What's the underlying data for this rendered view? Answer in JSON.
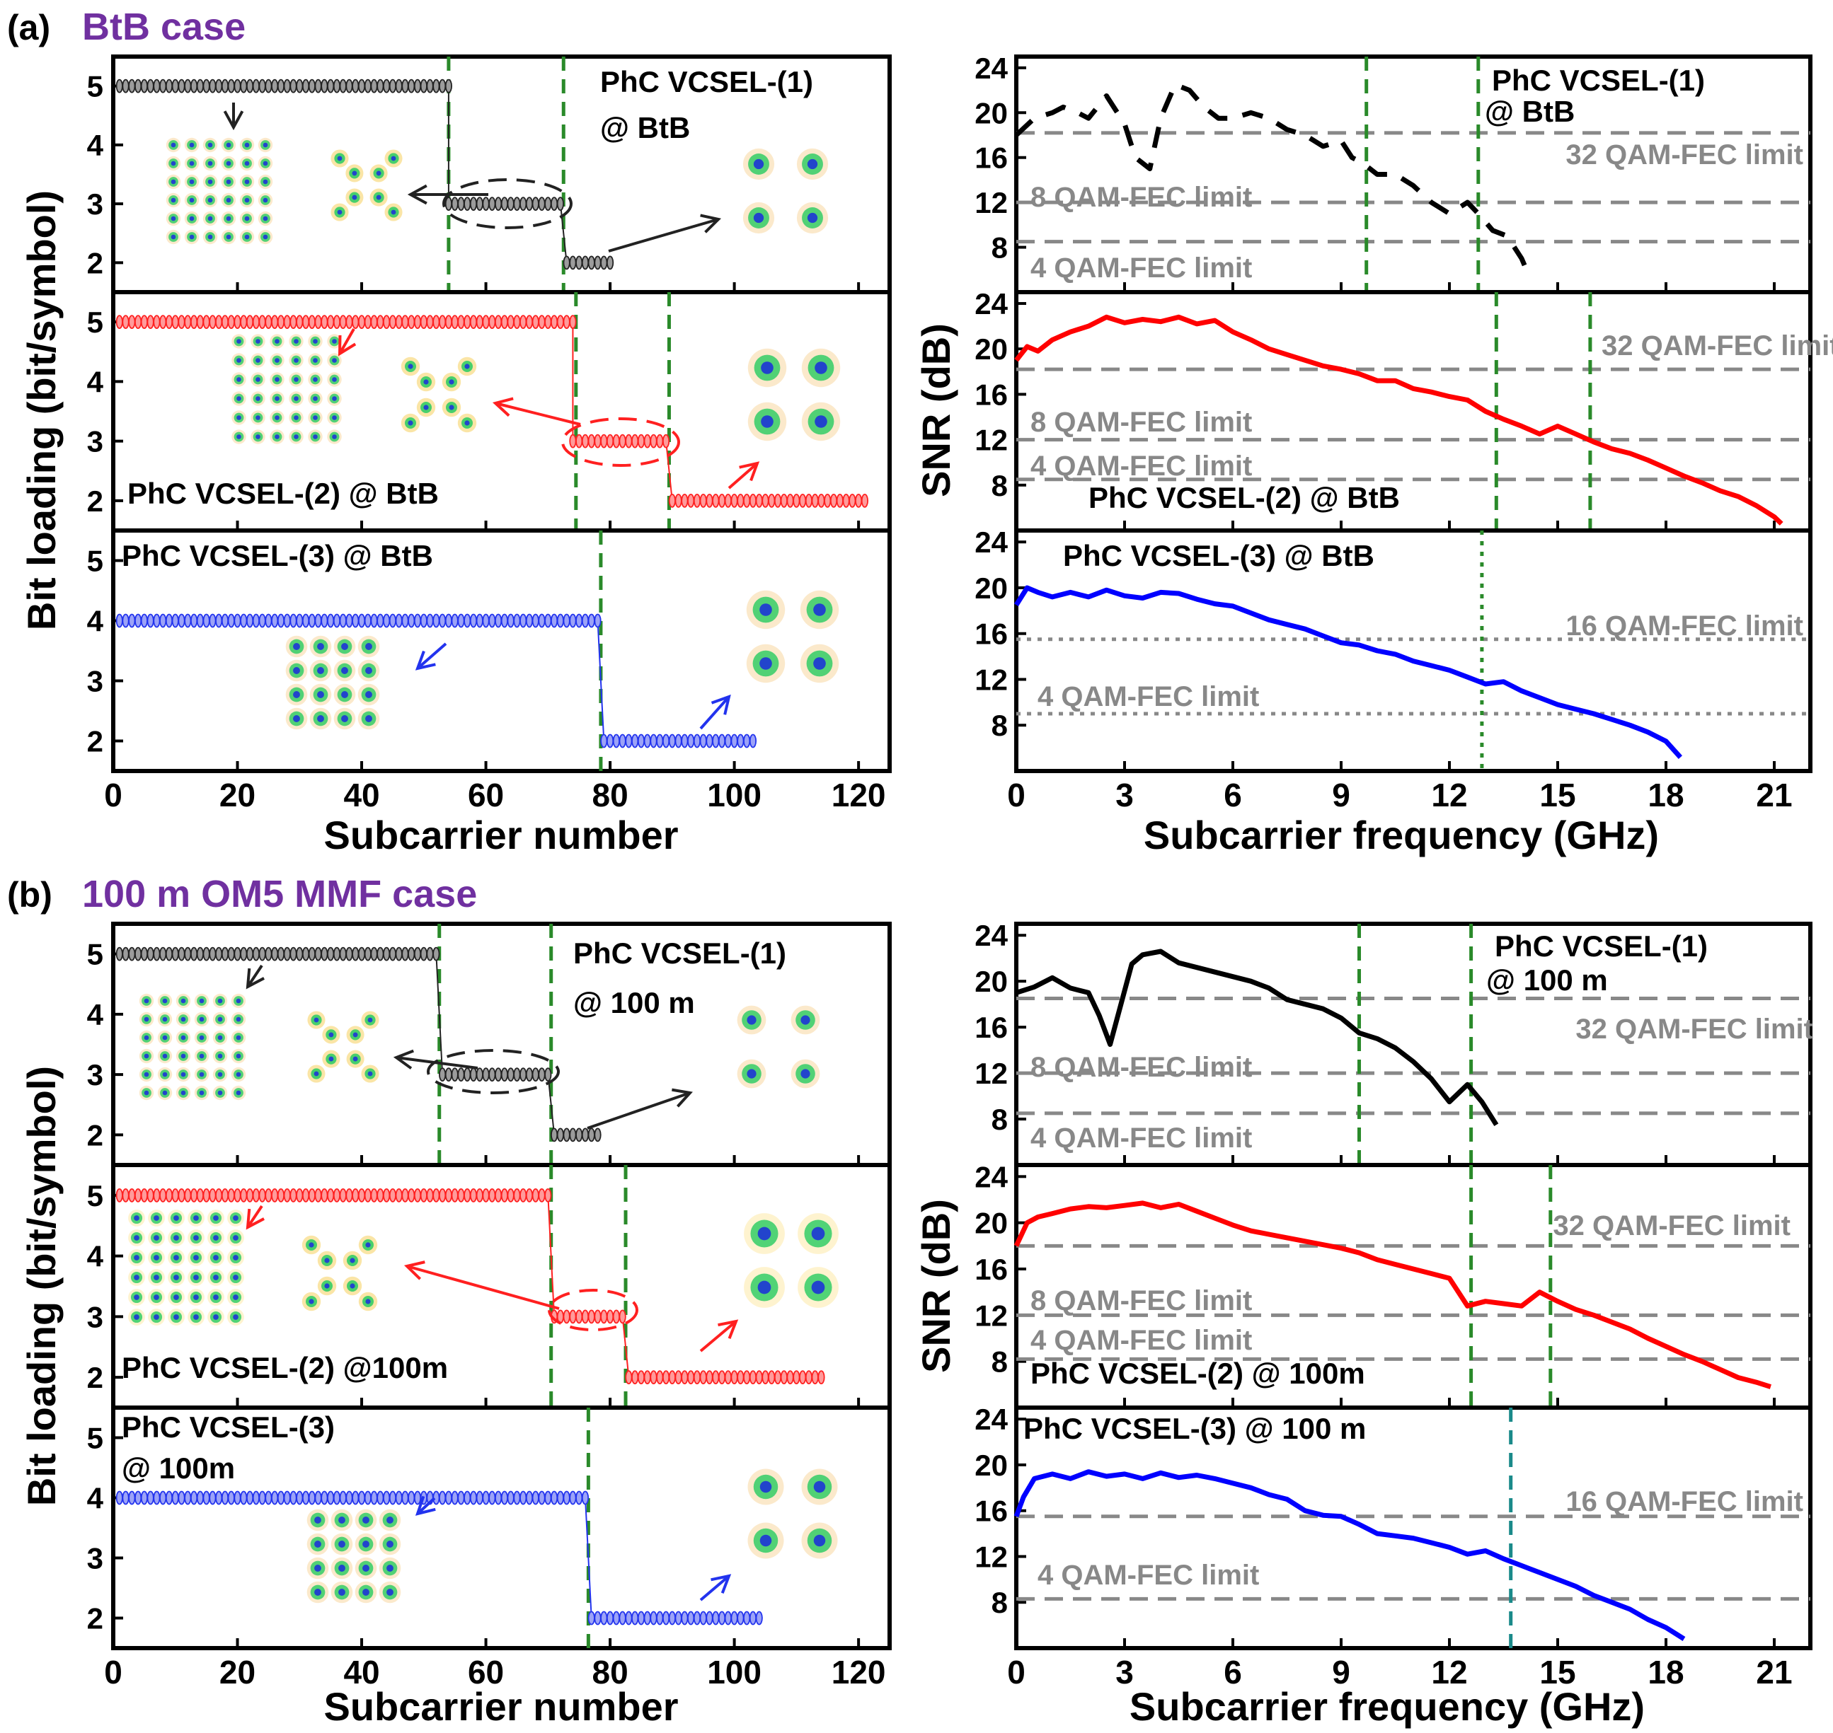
{
  "figure": {
    "sections": [
      {
        "tag": "(a)",
        "title": "BtB case",
        "title_color": "#7030A0"
      },
      {
        "tag": "(b)",
        "title": "100 m OM5 MMF case",
        "title_color": "#7030A0"
      }
    ],
    "bit_axis": {
      "ylabel": "Bit loading (bit/symbol)",
      "xlabel": "Subcarrier number",
      "x_ticks": [
        "0",
        "20",
        "40",
        "60",
        "80",
        "100",
        "120"
      ],
      "y_ticks": [
        "2",
        "3",
        "4",
        "5"
      ]
    },
    "snr_axis": {
      "ylabel": "SNR (dB)",
      "xlabel": "Subcarrier frequency (GHz)",
      "x_ticks": [
        "0",
        "3",
        "6",
        "9",
        "12",
        "15",
        "18",
        "21"
      ],
      "y_ticks": [
        "8",
        "12",
        "16",
        "20",
        "24"
      ]
    }
  },
  "chart_data": [
    {
      "type": "line",
      "id": "a-bit-1",
      "title": "PhC VCSEL-(1)",
      "subtitle": "@ BtB",
      "color": "#222222",
      "xlabel": "Subcarrier number",
      "ylabel": "Bit loading (bit/symbol)",
      "xlim": [
        0,
        125
      ],
      "ylim": [
        1.5,
        5.5
      ],
      "steps": [
        {
          "from": 1,
          "to": 54,
          "bits": 5
        },
        {
          "from": 54,
          "to": 72,
          "bits": 3
        },
        {
          "from": 73,
          "to": 80,
          "bits": 2
        }
      ],
      "boundaries": [
        54,
        72.5
      ]
    },
    {
      "type": "line",
      "id": "a-bit-2",
      "title": "PhC VCSEL-(2) @ BtB",
      "color": "#FF2020",
      "xlim": [
        0,
        125
      ],
      "ylim": [
        1.5,
        5.5
      ],
      "steps": [
        {
          "from": 1,
          "to": 74,
          "bits": 5
        },
        {
          "from": 74,
          "to": 89,
          "bits": 3
        },
        {
          "from": 90,
          "to": 121,
          "bits": 2
        }
      ],
      "boundaries": [
        74.5,
        89.5
      ]
    },
    {
      "type": "line",
      "id": "a-bit-3",
      "title": "PhC VCSEL-(3) @ BtB",
      "color": "#2233EE",
      "xlim": [
        0,
        125
      ],
      "ylim": [
        1.5,
        5.5
      ],
      "steps": [
        {
          "from": 1,
          "to": 78,
          "bits": 4
        },
        {
          "from": 79,
          "to": 103,
          "bits": 2
        }
      ],
      "boundaries": [
        78.5
      ]
    },
    {
      "type": "line",
      "id": "a-snr-1",
      "title": "PhC VCSEL-(1)",
      "subtitle": "@ BtB",
      "color": "#000000",
      "dashed": true,
      "xlabel": "Subcarrier frequency (GHz)",
      "ylabel": "SNR (dB)",
      "xlim": [
        0,
        22
      ],
      "ylim": [
        4,
        25
      ],
      "x": [
        0,
        0.5,
        1,
        1.3,
        1.7,
        2,
        2.5,
        3,
        3.3,
        3.7,
        4,
        4.4,
        4.8,
        5.2,
        5.6,
        6,
        6.5,
        7,
        7.5,
        8,
        8.5,
        9,
        9.3,
        9.6,
        10,
        10.5,
        11,
        11.5,
        12,
        12.5,
        12.8,
        13.2,
        13.6,
        14,
        14.2
      ],
      "y": [
        18,
        19.5,
        20,
        20.5,
        20,
        19.5,
        21.5,
        19,
        16,
        15,
        19.5,
        22.5,
        22,
        20.5,
        19.5,
        19.5,
        20,
        19.5,
        18.5,
        18,
        17,
        17.5,
        16,
        15.5,
        14.5,
        14.5,
        13.5,
        12,
        11,
        12,
        11,
        9.5,
        9,
        7,
        5.5
      ],
      "fec": [
        {
          "label": "32 QAM-FEC limit",
          "value": 18.2
        },
        {
          "label": "8 QAM-FEC limit",
          "value": 12
        },
        {
          "label": "4 QAM-FEC limit",
          "value": 8.5
        }
      ],
      "vlines": [
        9.7,
        12.8
      ]
    },
    {
      "type": "line",
      "id": "a-snr-2",
      "title": "PhC VCSEL-(2) @ BtB",
      "color": "#FF0000",
      "xlim": [
        0,
        22
      ],
      "ylim": [
        4,
        25
      ],
      "x": [
        0,
        0.3,
        0.6,
        1,
        1.5,
        2,
        2.5,
        3,
        3.5,
        4,
        4.5,
        5,
        5.5,
        6,
        6.5,
        7,
        7.5,
        8,
        8.5,
        9,
        9.5,
        10,
        10.5,
        11,
        11.5,
        12,
        12.5,
        13,
        13.5,
        14,
        14.5,
        15,
        15.5,
        16,
        16.5,
        17,
        17.5,
        18,
        18.5,
        19,
        19.5,
        20,
        20.5,
        21,
        21.2
      ],
      "y": [
        19,
        20.2,
        19.8,
        20.8,
        21.5,
        22,
        22.8,
        22.3,
        22.6,
        22.4,
        22.8,
        22.2,
        22.5,
        21.5,
        20.8,
        20,
        19.5,
        19,
        18.5,
        18.2,
        17.8,
        17.2,
        17.2,
        16.5,
        16.2,
        15.8,
        15.5,
        14.5,
        13.8,
        13.2,
        12.5,
        13.2,
        12.5,
        11.8,
        11.2,
        10.8,
        10.2,
        9.5,
        8.8,
        8.2,
        7.5,
        7,
        6.2,
        5.2,
        4.6
      ],
      "fec": [
        {
          "label": "32 QAM-FEC limit",
          "value": 18.2
        },
        {
          "label": "8 QAM-FEC limit",
          "value": 12
        },
        {
          "label": "4 QAM-FEC limit",
          "value": 8.5
        }
      ],
      "vlines": [
        13.3,
        15.9
      ]
    },
    {
      "type": "line",
      "id": "a-snr-3",
      "title": "PhC VCSEL-(3) @ BtB",
      "color": "#0000FF",
      "xlim": [
        0,
        22
      ],
      "ylim": [
        4,
        25
      ],
      "x": [
        0,
        0.3,
        0.6,
        1,
        1.5,
        2,
        2.5,
        3,
        3.5,
        4,
        4.5,
        5,
        5.5,
        6,
        6.5,
        7,
        7.5,
        8,
        8.5,
        9,
        9.5,
        10,
        10.5,
        11,
        11.5,
        12,
        12.5,
        13,
        13.5,
        14,
        14.5,
        15,
        15.5,
        16,
        16.5,
        17,
        17.5,
        18,
        18.4
      ],
      "y": [
        18.5,
        20,
        19.6,
        19.2,
        19.6,
        19.2,
        19.8,
        19.3,
        19.1,
        19.6,
        19.5,
        19,
        18.6,
        18.4,
        17.8,
        17.2,
        16.8,
        16.4,
        15.8,
        15.2,
        15,
        14.5,
        14.2,
        13.6,
        13.2,
        12.8,
        12.2,
        11.6,
        11.8,
        11,
        10.4,
        9.8,
        9.4,
        9,
        8.5,
        8,
        7.4,
        6.6,
        5.2
      ],
      "fec": [
        {
          "label": "16 QAM-FEC limit",
          "value": 15.5
        },
        {
          "label": "4 QAM-FEC limit",
          "value": 9
        }
      ],
      "vlines": [
        12.9
      ]
    },
    {
      "type": "line",
      "id": "b-bit-1",
      "title": "PhC VCSEL-(1)",
      "subtitle": "@ 100 m",
      "color": "#222222",
      "xlim": [
        0,
        125
      ],
      "ylim": [
        1.5,
        5.5
      ],
      "steps": [
        {
          "from": 1,
          "to": 52,
          "bits": 5
        },
        {
          "from": 53,
          "to": 70,
          "bits": 3
        },
        {
          "from": 71,
          "to": 78,
          "bits": 2
        }
      ],
      "boundaries": [
        52.5,
        70.5
      ]
    },
    {
      "type": "line",
      "id": "b-bit-2",
      "title": "PhC VCSEL-(2) @100m",
      "color": "#FF2020",
      "xlim": [
        0,
        125
      ],
      "ylim": [
        1.5,
        5.5
      ],
      "steps": [
        {
          "from": 1,
          "to": 70,
          "bits": 5
        },
        {
          "from": 71,
          "to": 82,
          "bits": 3
        },
        {
          "from": 83,
          "to": 114,
          "bits": 2
        }
      ],
      "boundaries": [
        70.5,
        82.5
      ]
    },
    {
      "type": "line",
      "id": "b-bit-3",
      "title": "PhC VCSEL-(3)",
      "subtitle": "@ 100m",
      "color": "#2233EE",
      "xlim": [
        0,
        125
      ],
      "ylim": [
        1.5,
        5.5
      ],
      "steps": [
        {
          "from": 1,
          "to": 76,
          "bits": 4
        },
        {
          "from": 77,
          "to": 104,
          "bits": 2
        }
      ],
      "boundaries": [
        76.5
      ]
    },
    {
      "type": "line",
      "id": "b-snr-1",
      "title": "PhC VCSEL-(1)",
      "subtitle": "@ 100 m",
      "color": "#000000",
      "xlim": [
        0,
        22
      ],
      "ylim": [
        4,
        25
      ],
      "x": [
        0,
        0.5,
        1,
        1.5,
        2,
        2.3,
        2.6,
        2.9,
        3.2,
        3.5,
        4,
        4.5,
        5,
        5.5,
        6,
        6.5,
        7,
        7.5,
        8,
        8.5,
        9,
        9.5,
        10,
        10.5,
        11,
        11.5,
        12,
        12.5,
        12.9,
        13.3
      ],
      "y": [
        19,
        19.5,
        20.3,
        19.4,
        19,
        17,
        14.5,
        18,
        21.5,
        22.3,
        22.6,
        21.6,
        21.2,
        20.8,
        20.4,
        20,
        19.4,
        18.4,
        18,
        17.6,
        16.8,
        15.5,
        15,
        14.2,
        13,
        11.5,
        9.5,
        11,
        9.5,
        7.5
      ],
      "fec": [
        {
          "label": "32 QAM-FEC limit",
          "value": 18.5
        },
        {
          "label": "8 QAM-FEC limit",
          "value": 12
        },
        {
          "label": "4 QAM-FEC limit",
          "value": 8.5
        }
      ],
      "vlines": [
        9.5,
        12.6
      ]
    },
    {
      "type": "line",
      "id": "b-snr-2",
      "title": "PhC VCSEL-(2) @ 100m",
      "color": "#FF0000",
      "xlim": [
        0,
        22
      ],
      "ylim": [
        4,
        25
      ],
      "x": [
        0,
        0.3,
        0.6,
        1,
        1.5,
        2,
        2.5,
        3,
        3.5,
        4,
        4.5,
        5,
        5.5,
        6,
        6.5,
        7,
        7.5,
        8,
        8.5,
        9,
        9.5,
        10,
        10.5,
        11,
        11.5,
        12,
        12.5,
        13,
        13.5,
        14,
        14.5,
        15,
        15.5,
        16,
        16.5,
        17,
        17.5,
        18,
        18.5,
        19,
        19.5,
        20,
        20.5,
        20.9
      ],
      "y": [
        18,
        20,
        20.5,
        20.8,
        21.2,
        21.4,
        21.3,
        21.5,
        21.7,
        21.3,
        21.6,
        21,
        20.4,
        19.8,
        19.3,
        19,
        18.7,
        18.4,
        18.1,
        17.8,
        17.4,
        16.8,
        16.4,
        16,
        15.6,
        15.2,
        12.8,
        13.2,
        13,
        12.8,
        14,
        13.2,
        12.5,
        12,
        11.4,
        10.8,
        10,
        9.3,
        8.6,
        8,
        7.3,
        6.6,
        6.2,
        5.8
      ],
      "fec": [
        {
          "label": "32 QAM-FEC limit",
          "value": 18
        },
        {
          "label": "8 QAM-FEC limit",
          "value": 12
        },
        {
          "label": "4 QAM-FEC limit",
          "value": 8.2
        }
      ],
      "vlines": [
        12.6,
        14.8
      ]
    },
    {
      "type": "line",
      "id": "b-snr-3",
      "title": "PhC VCSEL-(3) @ 100 m",
      "color": "#0000FF",
      "xlim": [
        0,
        22
      ],
      "ylim": [
        4,
        25
      ],
      "x": [
        0,
        0.2,
        0.5,
        1,
        1.5,
        2,
        2.5,
        3,
        3.5,
        4,
        4.5,
        5,
        5.5,
        6,
        6.5,
        7,
        7.5,
        8,
        8.5,
        9,
        9.5,
        10,
        10.5,
        11,
        11.5,
        12,
        12.5,
        13,
        13.5,
        14,
        14.5,
        15,
        15.5,
        16,
        16.5,
        17,
        17.5,
        18,
        18.5
      ],
      "y": [
        15.5,
        17.2,
        18.8,
        19.2,
        18.8,
        19.4,
        19,
        19.2,
        18.8,
        19.3,
        18.9,
        19.1,
        18.8,
        18.4,
        18,
        17.4,
        17,
        16,
        15.6,
        15.5,
        14.8,
        14,
        13.8,
        13.6,
        13.2,
        12.8,
        12.2,
        12.5,
        11.8,
        11.2,
        10.6,
        10,
        9.4,
        8.6,
        8,
        7.4,
        6.5,
        5.8,
        4.8
      ],
      "fec": [
        {
          "label": "16 QAM-FEC limit",
          "value": 15.5
        },
        {
          "label": "4 QAM-FEC limit",
          "value": 8.3
        }
      ],
      "vlines": [
        13.7
      ]
    }
  ]
}
